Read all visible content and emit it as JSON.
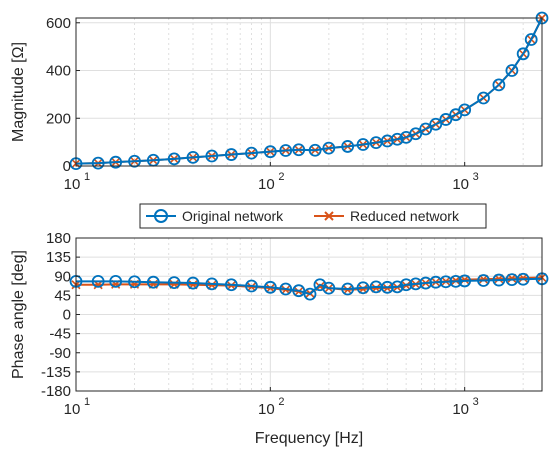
{
  "colors": {
    "original": "#0072BD",
    "reduced": "#D95319",
    "original_marker_fill": "#FFFFFF",
    "axis": "#262626",
    "grid": "#DFDFDF"
  },
  "legend": {
    "placement": "between-panels",
    "original_label": "Original network",
    "reduced_label": "Reduced network"
  },
  "chart_data": [
    {
      "type": "line",
      "panel": "magnitude",
      "xscale": "log",
      "xlim": [
        10,
        2500
      ],
      "ylim": [
        0,
        620
      ],
      "xticks": [
        10,
        100,
        1000
      ],
      "xtick_labels": [
        "10",
        "10",
        "10"
      ],
      "xtick_exponents": [
        "1",
        "2",
        "3"
      ],
      "yticks": [
        0,
        200,
        400,
        600
      ],
      "ytick_labels": [
        "0",
        "200",
        "400",
        "600"
      ],
      "xlabel": "",
      "ylabel": "Magnitude [Ω]",
      "grid": true,
      "x": [
        10,
        13,
        16,
        20,
        25,
        32,
        40,
        50,
        63,
        80,
        100,
        120,
        140,
        170,
        200,
        250,
        300,
        350,
        400,
        450,
        500,
        560,
        630,
        710,
        800,
        900,
        1000,
        1250,
        1500,
        1750,
        2000,
        2200,
        2500
      ],
      "series": [
        {
          "name": "Original network",
          "marker": "circle",
          "values": [
            10,
            12,
            16,
            20,
            24,
            30,
            36,
            42,
            48,
            54,
            60,
            65,
            68,
            66,
            75,
            82,
            90,
            98,
            105,
            112,
            120,
            135,
            155,
            175,
            195,
            215,
            235,
            285,
            340,
            400,
            470,
            530,
            620
          ]
        },
        {
          "name": "Reduced network",
          "marker": "x",
          "values": [
            10,
            12,
            16,
            20,
            24,
            30,
            36,
            42,
            48,
            54,
            60,
            65,
            68,
            66,
            75,
            82,
            90,
            98,
            105,
            112,
            120,
            135,
            155,
            175,
            195,
            215,
            235,
            285,
            340,
            400,
            470,
            530,
            620
          ]
        }
      ]
    },
    {
      "type": "line",
      "panel": "phase",
      "xscale": "log",
      "xlim": [
        10,
        2500
      ],
      "ylim": [
        -180,
        180
      ],
      "xticks": [
        10,
        100,
        1000
      ],
      "xtick_labels": [
        "10",
        "10",
        "10"
      ],
      "xtick_exponents": [
        "1",
        "2",
        "3"
      ],
      "yticks": [
        -180,
        -135,
        -90,
        -45,
        0,
        45,
        90,
        135,
        180
      ],
      "ytick_labels": [
        "-180",
        "-135",
        "-90",
        "-45",
        "0",
        "45",
        "90",
        "135",
        "180"
      ],
      "xlabel": "Frequency [Hz]",
      "ylabel": "Phase angle [deg]",
      "grid": true,
      "x": [
        10,
        13,
        16,
        20,
        25,
        32,
        40,
        50,
        63,
        80,
        100,
        120,
        140,
        160,
        180,
        200,
        250,
        300,
        350,
        400,
        450,
        500,
        560,
        630,
        710,
        800,
        900,
        1000,
        1250,
        1500,
        1750,
        2000,
        2500
      ],
      "series": [
        {
          "name": "Original network",
          "marker": "circle",
          "values": [
            78,
            78,
            78,
            77,
            76,
            75,
            74,
            72,
            70,
            67,
            64,
            60,
            56,
            48,
            70,
            62,
            60,
            63,
            65,
            64,
            65,
            70,
            72,
            74,
            76,
            77,
            78,
            79,
            80,
            81,
            82,
            83,
            84
          ]
        },
        {
          "name": "Reduced network",
          "marker": "x",
          "values": [
            70,
            70,
            71,
            71,
            71,
            71,
            70,
            69,
            68,
            65,
            62,
            58,
            54,
            50,
            66,
            62,
            58,
            60,
            62,
            62,
            64,
            68,
            71,
            74,
            76,
            78,
            80,
            82,
            83,
            84,
            85,
            86,
            87
          ]
        }
      ]
    }
  ]
}
